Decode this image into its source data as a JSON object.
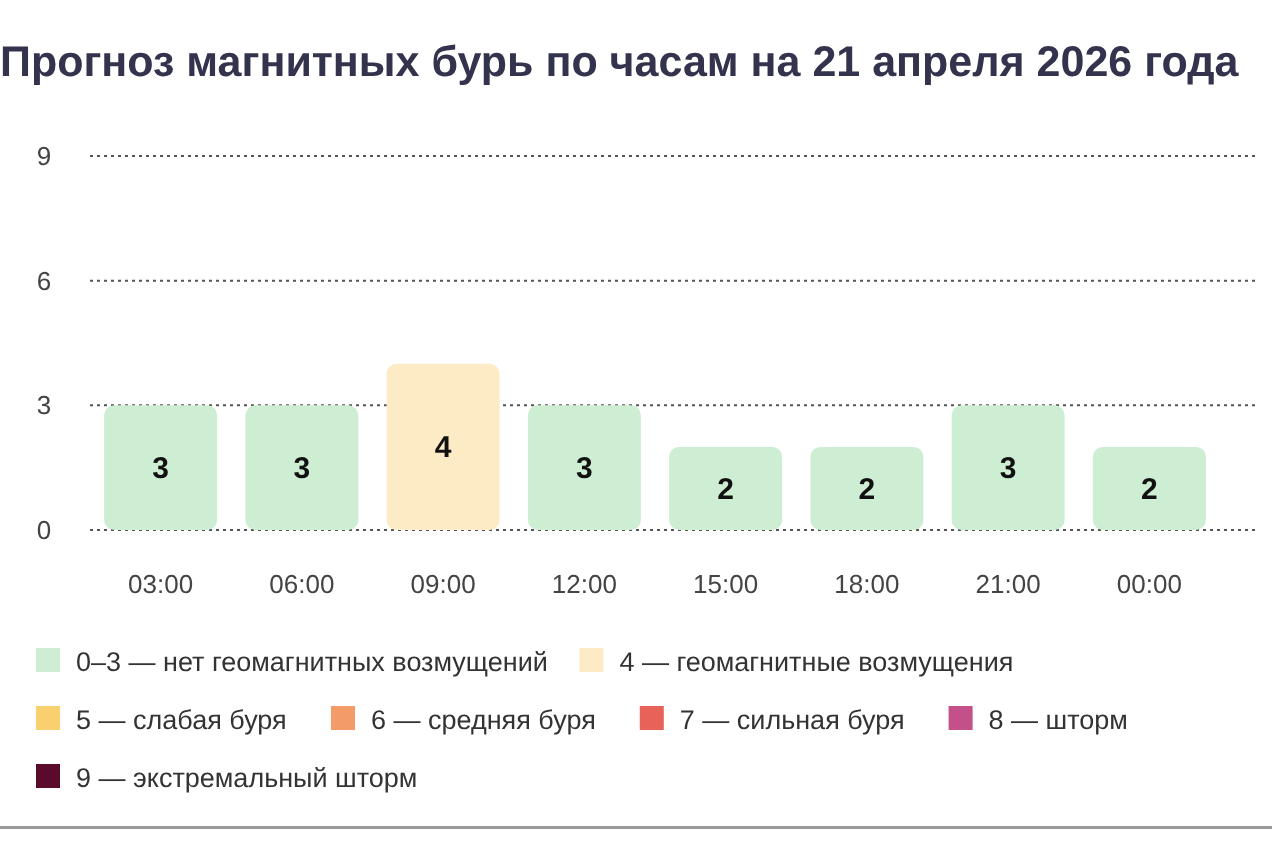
{
  "chart_data": {
    "type": "bar",
    "title": "Прогноз магнитных бурь по часам на 21 апреля 2026 года",
    "categories": [
      "03:00",
      "06:00",
      "09:00",
      "12:00",
      "15:00",
      "18:00",
      "21:00",
      "00:00"
    ],
    "series": [
      {
        "name": "0–3 — нет геомагнитных возмущений",
        "color": "#cdeed2",
        "values": [
          3,
          3,
          null,
          3,
          2,
          2,
          3,
          2
        ]
      },
      {
        "name": "4 — геомагнитные возмущения",
        "color": "#fdebc6",
        "values": [
          null,
          null,
          4,
          null,
          null,
          null,
          null,
          null
        ]
      },
      {
        "name": "5 — слабая буря",
        "color": "#f8d06e",
        "values": [
          null,
          null,
          null,
          null,
          null,
          null,
          null,
          null
        ]
      },
      {
        "name": "6 — средняя буря",
        "color": "#f49c68",
        "values": [
          null,
          null,
          null,
          null,
          null,
          null,
          null,
          null
        ]
      },
      {
        "name": "7 — сильная буря",
        "color": "#e8625a",
        "values": [
          null,
          null,
          null,
          null,
          null,
          null,
          null,
          null
        ]
      },
      {
        "name": "8 — шторм",
        "color": "#c4508a",
        "values": [
          null,
          null,
          null,
          null,
          null,
          null,
          null,
          null
        ]
      },
      {
        "name": "9 — экстремальный шторм",
        "color": "#5c0a2c",
        "values": [
          null,
          null,
          null,
          null,
          null,
          null,
          null,
          null
        ]
      }
    ],
    "ylim": [
      0,
      9
    ],
    "yticks": [
      0,
      3,
      6,
      9
    ],
    "grid": "y",
    "data_labels": true,
    "legend": "bottom"
  }
}
